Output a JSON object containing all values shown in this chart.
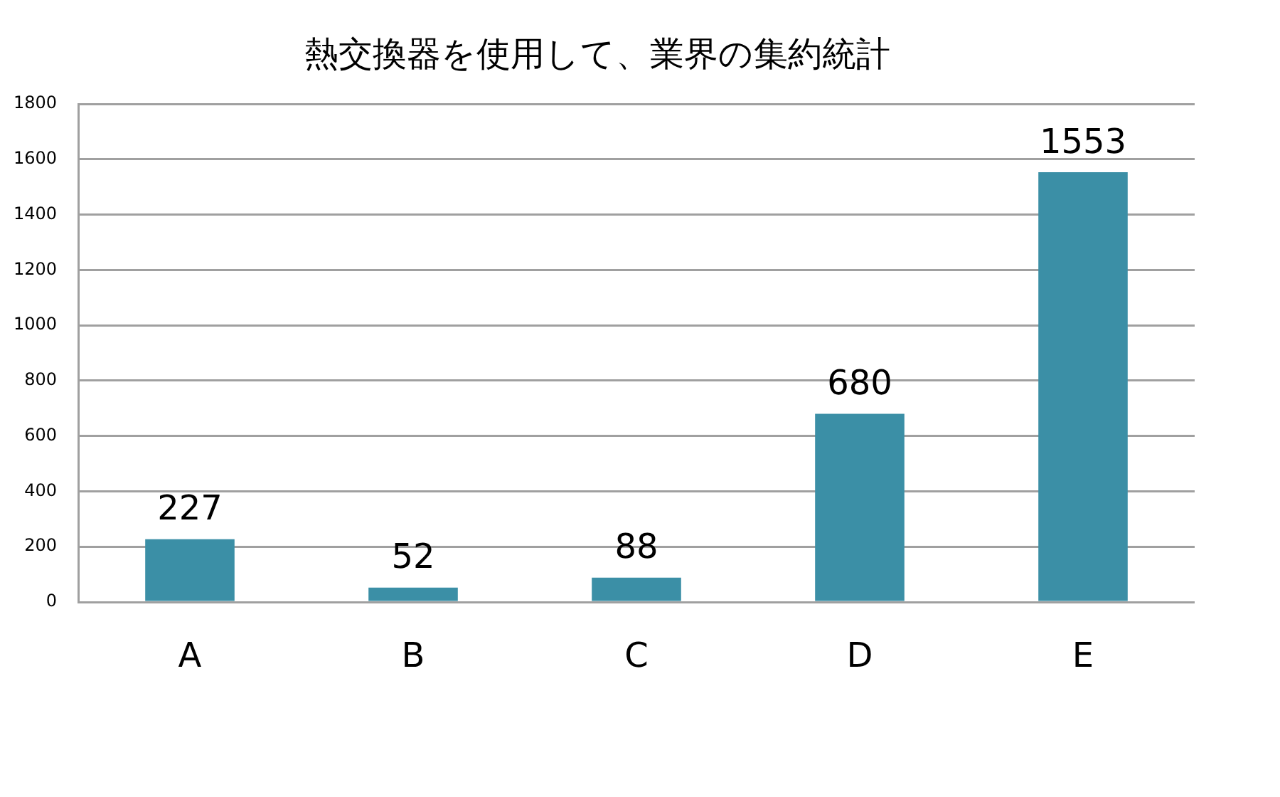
{
  "chart_data": {
    "type": "bar",
    "title": "熱交換器を使用して、業界の集約統計",
    "categories": [
      "A",
      "B",
      "C",
      "D",
      "E"
    ],
    "values": [
      227,
      52,
      88,
      680,
      1553
    ],
    "color": "#3b8fa6",
    "ylim": [
      0,
      1800
    ],
    "yticks": [
      0,
      200,
      400,
      600,
      800,
      1000,
      1200,
      1400,
      1600,
      1800
    ],
    "grid": "y",
    "data_labels": true
  }
}
